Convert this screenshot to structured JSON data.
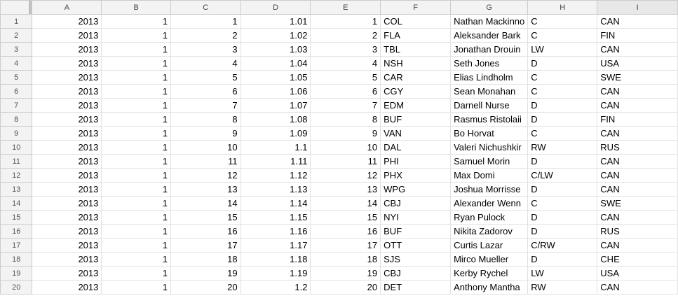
{
  "columns": [
    "A",
    "B",
    "C",
    "D",
    "E",
    "F",
    "G",
    "H",
    "I"
  ],
  "rows": [
    {
      "n": "1",
      "a": "2013",
      "b": "1",
      "c": "1",
      "d": "1.01",
      "e": "1",
      "f": "COL",
      "g": "Nathan Mackinno",
      "h": "C",
      "i": "CAN"
    },
    {
      "n": "2",
      "a": "2013",
      "b": "1",
      "c": "2",
      "d": "1.02",
      "e": "2",
      "f": "FLA",
      "g": "Aleksander Bark",
      "h": "C",
      "i": "FIN"
    },
    {
      "n": "3",
      "a": "2013",
      "b": "1",
      "c": "3",
      "d": "1.03",
      "e": "3",
      "f": "TBL",
      "g": "Jonathan Drouin",
      "h": "LW",
      "i": "CAN"
    },
    {
      "n": "4",
      "a": "2013",
      "b": "1",
      "c": "4",
      "d": "1.04",
      "e": "4",
      "f": "NSH",
      "g": "Seth Jones",
      "h": "D",
      "i": "USA"
    },
    {
      "n": "5",
      "a": "2013",
      "b": "1",
      "c": "5",
      "d": "1.05",
      "e": "5",
      "f": "CAR",
      "g": "Elias Lindholm",
      "h": "C",
      "i": "SWE"
    },
    {
      "n": "6",
      "a": "2013",
      "b": "1",
      "c": "6",
      "d": "1.06",
      "e": "6",
      "f": "CGY",
      "g": "Sean Monahan",
      "h": "C",
      "i": "CAN"
    },
    {
      "n": "7",
      "a": "2013",
      "b": "1",
      "c": "7",
      "d": "1.07",
      "e": "7",
      "f": "EDM",
      "g": "Darnell Nurse",
      "h": "D",
      "i": "CAN"
    },
    {
      "n": "8",
      "a": "2013",
      "b": "1",
      "c": "8",
      "d": "1.08",
      "e": "8",
      "f": "BUF",
      "g": "Rasmus Ristolaii",
      "h": "D",
      "i": "FIN"
    },
    {
      "n": "9",
      "a": "2013",
      "b": "1",
      "c": "9",
      "d": "1.09",
      "e": "9",
      "f": "VAN",
      "g": "Bo Horvat",
      "h": "C",
      "i": "CAN"
    },
    {
      "n": "10",
      "a": "2013",
      "b": "1",
      "c": "10",
      "d": "1.1",
      "e": "10",
      "f": "DAL",
      "g": "Valeri Nichushkir",
      "h": "RW",
      "i": "RUS"
    },
    {
      "n": "11",
      "a": "2013",
      "b": "1",
      "c": "11",
      "d": "1.11",
      "e": "11",
      "f": "PHI",
      "g": "Samuel Morin",
      "h": "D",
      "i": "CAN"
    },
    {
      "n": "12",
      "a": "2013",
      "b": "1",
      "c": "12",
      "d": "1.12",
      "e": "12",
      "f": "PHX",
      "g": "Max Domi",
      "h": "C/LW",
      "i": "CAN"
    },
    {
      "n": "13",
      "a": "2013",
      "b": "1",
      "c": "13",
      "d": "1.13",
      "e": "13",
      "f": "WPG",
      "g": "Joshua Morrisse",
      "h": "D",
      "i": "CAN"
    },
    {
      "n": "14",
      "a": "2013",
      "b": "1",
      "c": "14",
      "d": "1.14",
      "e": "14",
      "f": "CBJ",
      "g": "Alexander Wenn",
      "h": "C",
      "i": "SWE"
    },
    {
      "n": "15",
      "a": "2013",
      "b": "1",
      "c": "15",
      "d": "1.15",
      "e": "15",
      "f": "NYI",
      "g": "Ryan Pulock",
      "h": "D",
      "i": "CAN"
    },
    {
      "n": "16",
      "a": "2013",
      "b": "1",
      "c": "16",
      "d": "1.16",
      "e": "16",
      "f": "BUF",
      "g": "Nikita Zadorov",
      "h": "D",
      "i": "RUS"
    },
    {
      "n": "17",
      "a": "2013",
      "b": "1",
      "c": "17",
      "d": "1.17",
      "e": "17",
      "f": "OTT",
      "g": "Curtis Lazar",
      "h": "C/RW",
      "i": "CAN"
    },
    {
      "n": "18",
      "a": "2013",
      "b": "1",
      "c": "18",
      "d": "1.18",
      "e": "18",
      "f": "SJS",
      "g": "Mirco Mueller",
      "h": "D",
      "i": "CHE"
    },
    {
      "n": "19",
      "a": "2013",
      "b": "1",
      "c": "19",
      "d": "1.19",
      "e": "19",
      "f": "CBJ",
      "g": "Kerby Rychel",
      "h": "LW",
      "i": "USA"
    },
    {
      "n": "20",
      "a": "2013",
      "b": "1",
      "c": "20",
      "d": "1.2",
      "e": "20",
      "f": "DET",
      "g": "Anthony Mantha",
      "h": "RW",
      "i": "CAN"
    }
  ]
}
